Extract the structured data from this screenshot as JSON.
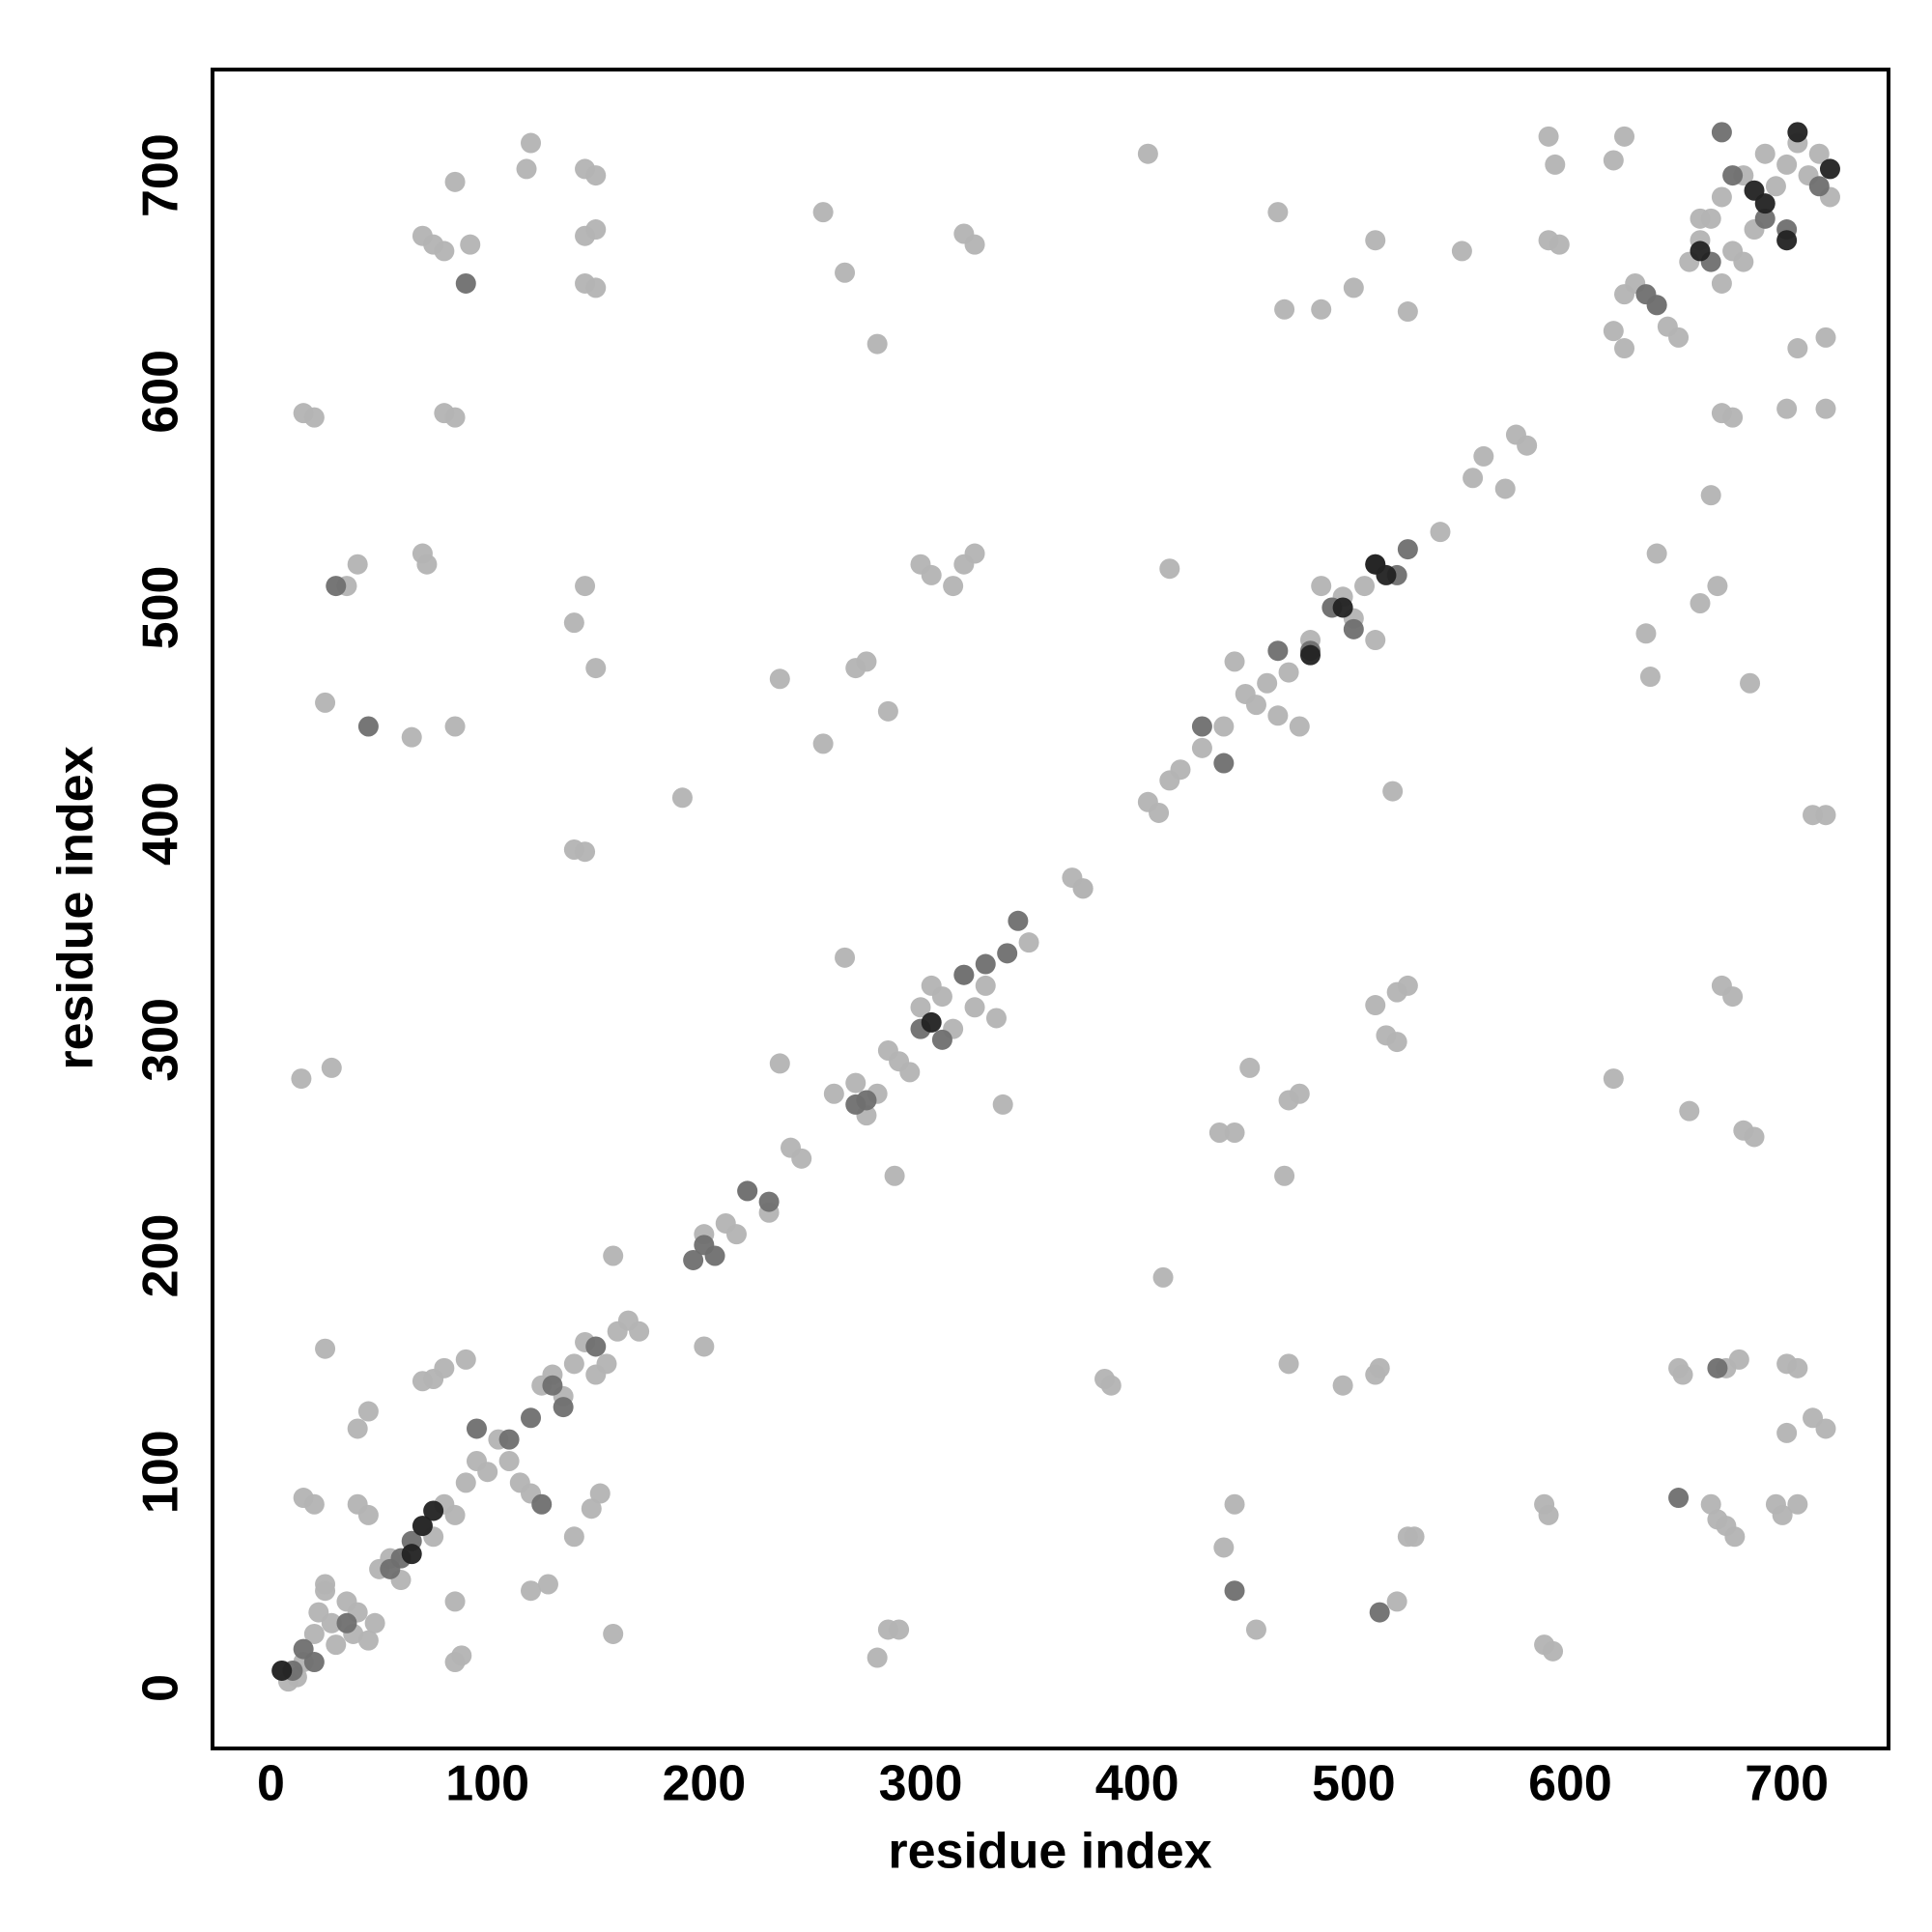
{
  "chart_data": {
    "type": "scatter",
    "xlabel": "residue index",
    "ylabel": "residue index",
    "xlim": [
      -27,
      747
    ],
    "ylim": [
      -28,
      749
    ],
    "xticks": [
      0,
      100,
      200,
      300,
      400,
      500,
      600,
      700
    ],
    "yticks": [
      0,
      100,
      200,
      300,
      400,
      500,
      600,
      700
    ],
    "grid": false,
    "series": [
      {
        "color": "#b3b3b3",
        "x": [
          5,
          8,
          12,
          15,
          20,
          22,
          25,
          28,
          30,
          35,
          38,
          40,
          45,
          48,
          50,
          55,
          60,
          70,
          75,
          80,
          85,
          90,
          95,
          100,
          105,
          110,
          115,
          120,
          125,
          130,
          135,
          140,
          145,
          150,
          155,
          160,
          165,
          170,
          200,
          210,
          215,
          220,
          230,
          240,
          245,
          260,
          270,
          275,
          280,
          285,
          290,
          295,
          300,
          305,
          310,
          315,
          320,
          325,
          330,
          335,
          350,
          370,
          375,
          405,
          410,
          415,
          420,
          430,
          440,
          445,
          450,
          455,
          460,
          465,
          470,
          475,
          480,
          485,
          490,
          495,
          500,
          505,
          510,
          540,
          555,
          560,
          570,
          575,
          580,
          625,
          630,
          640,
          645,
          650,
          655,
          660,
          665,
          670,
          675,
          680,
          685,
          690,
          695,
          700,
          705,
          710,
          715,
          720,
          680,
          670,
          660,
          15,
          20,
          80,
          85,
          70,
          75,
          85,
          80,
          92,
          120,
          118,
          145,
          150,
          145,
          145,
          150,
          150,
          255,
          265,
          280,
          320,
          325,
          405,
          465,
          468,
          485,
          500,
          510,
          525,
          550,
          590,
          595,
          590,
          593,
          620,
          625,
          620,
          625,
          705,
          718,
          718,
          700,
          670,
          675,
          712,
          718,
          40,
          35,
          70,
          72,
          145,
          140,
          150,
          25,
          65,
          85,
          140,
          145,
          190,
          235,
          255,
          270,
          275,
          285,
          300,
          305,
          315,
          325,
          320,
          415,
          518,
          445,
          438,
          452,
          470,
          475,
          468,
          510,
          515,
          520,
          520,
          525,
          375,
          385,
          388,
          412,
          470,
          495,
          510,
          512,
          445,
          440,
          455,
          520,
          525,
          528,
          588,
          590,
          588,
          592,
          620,
          655,
          680,
          685,
          635,
          637,
          640,
          660,
          665,
          683,
          668,
          670,
          675,
          650,
          652,
          672,
          678,
          700,
          705,
          700,
          712,
          718,
          695,
          698,
          705,
          665,
          668,
          672,
          676,
          280,
          285,
          290,
          288,
          265,
          235,
          200,
          158,
          158,
          25,
          14,
          28,
          15,
          20,
          40,
          45,
          25,
          40,
          45,
          85,
          88,
          85,
          70,
          75,
          80,
          90,
          120,
          128,
          140,
          148,
          152,
          338
        ],
        "values": [
          8,
          3,
          5,
          12,
          25,
          35,
          45,
          30,
          20,
          40,
          25,
          35,
          22,
          30,
          55,
          60,
          50,
          75,
          70,
          85,
          80,
          95,
          105,
          100,
          115,
          105,
          95,
          90,
          140,
          145,
          135,
          150,
          160,
          145,
          150,
          165,
          170,
          165,
          210,
          215,
          210,
          230,
          220,
          250,
          245,
          275,
          280,
          265,
          275,
          295,
          290,
          285,
          315,
          325,
          320,
          305,
          330,
          315,
          325,
          310,
          345,
          375,
          370,
          410,
          405,
          420,
          425,
          435,
          445,
          475,
          460,
          455,
          465,
          450,
          470,
          445,
          485,
          510,
          500,
          505,
          495,
          510,
          485,
          535,
          560,
          570,
          555,
          580,
          575,
          645,
          650,
          640,
          630,
          625,
          660,
          670,
          680,
          690,
          665,
          700,
          675,
          710,
          695,
          705,
          715,
          700,
          710,
          690,
          660,
          650,
          680,
          590,
          588,
          590,
          588,
          672,
          668,
          697,
          665,
          668,
          715,
          703,
          703,
          700,
          672,
          650,
          648,
          675,
          683,
          655,
          622,
          673,
          668,
          710,
          683,
          638,
          638,
          648,
          670,
          637,
          665,
          670,
          668,
          718,
          705,
          707,
          718,
          628,
          620,
          620,
          625,
          592,
          592,
          590,
          588,
          404,
          404,
          520,
          510,
          525,
          520,
          510,
          493,
          472,
          456,
          440,
          445,
          388,
          387,
          412,
          467,
          437,
          472,
          475,
          452,
          520,
          515,
          510,
          525,
          520,
          518,
          415,
          257,
          257,
          287,
          272,
          275,
          237,
          316,
          302,
          299,
          322,
          325,
          370,
          143,
          140,
          190,
          150,
          140,
          145,
          148,
          85,
          65,
          27,
          40,
          70,
          70,
          85,
          80,
          20,
          17,
          282,
          267,
          258,
          255,
          488,
          468,
          525,
          502,
          552,
          465,
          510,
          325,
          320,
          148,
          145,
          148,
          152,
          150,
          148,
          118,
          125,
          120,
          85,
          80,
          85,
          85,
          78,
          75,
          70,
          14,
          27,
          27,
          237,
          338,
          289,
          158,
          25,
          200,
          157,
          282,
          287,
          88,
          85,
          85,
          80,
          48,
          120,
          128,
          40,
          15,
          12,
          142,
          143,
          148,
          152,
          45,
          48,
          70,
          83,
          90,
          270
        ]
      },
      {
        "color": "#6f6f6f",
        "x": [
          10,
          15,
          20,
          35,
          30,
          45,
          55,
          60,
          65,
          90,
          95,
          110,
          120,
          125,
          130,
          135,
          150,
          195,
          200,
          205,
          220,
          230,
          270,
          275,
          300,
          310,
          320,
          330,
          340,
          345,
          430,
          440,
          445,
          465,
          480,
          490,
          500,
          510,
          520,
          525,
          512,
          650,
          640,
          665,
          670,
          675,
          690,
          700,
          715,
          668,
          635
        ],
        "values": [
          8,
          18,
          12,
          30,
          510,
          445,
          55,
          60,
          68,
          650,
          120,
          115,
          125,
          85,
          140,
          130,
          158,
          198,
          205,
          200,
          230,
          225,
          270,
          272,
          305,
          300,
          330,
          335,
          340,
          355,
          445,
          428,
          45,
          480,
          480,
          500,
          490,
          520,
          515,
          527,
          35,
          88,
          640,
          660,
          720,
          700,
          680,
          675,
          695,
          148,
          645
        ]
      },
      {
        "color": "#222222",
        "x": [
          5,
          75,
          70,
          65,
          305,
          480,
          495,
          515,
          510,
          685,
          690,
          705,
          720,
          700,
          660
        ],
        "values": [
          8,
          82,
          75,
          62,
          308,
          478,
          500,
          515,
          520,
          693,
          687,
          720,
          703,
          670,
          665
        ]
      }
    ]
  }
}
